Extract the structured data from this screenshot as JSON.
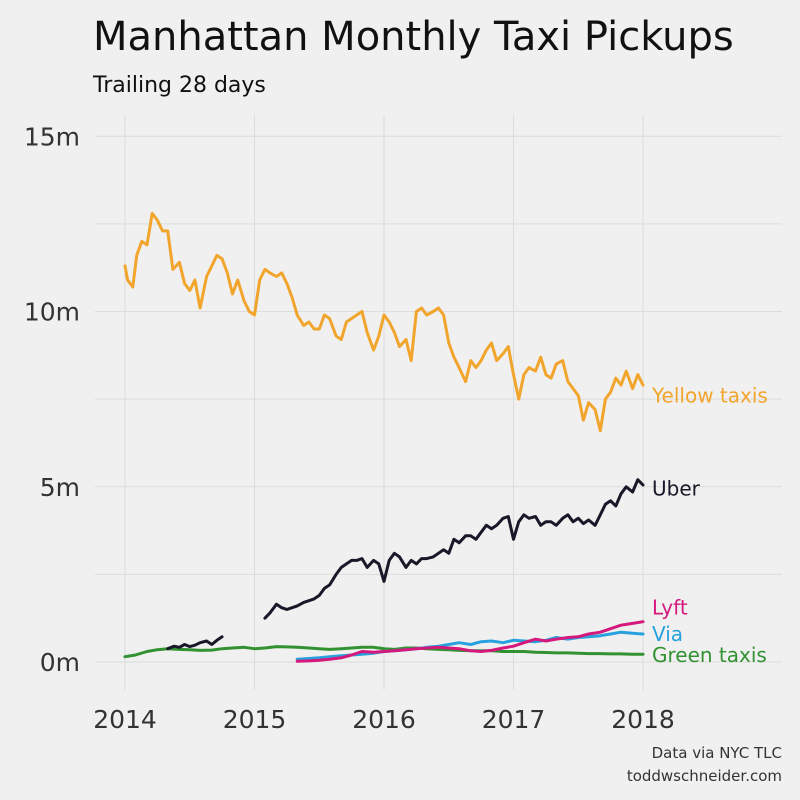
{
  "chart_data": {
    "type": "line",
    "title": "Manhattan Monthly Taxi Pickups",
    "subtitle": "Trailing 28 days",
    "xlabel": "",
    "ylabel": "",
    "xlim": [
      2014,
      2019
    ],
    "ylim": [
      -0.5,
      16
    ],
    "x_ticks": [
      {
        "value": 2014,
        "label": "2014"
      },
      {
        "value": 2015,
        "label": "2015"
      },
      {
        "value": 2016,
        "label": "2016"
      },
      {
        "value": 2017,
        "label": "2017"
      },
      {
        "value": 2018,
        "label": "2018"
      }
    ],
    "y_ticks": [
      {
        "value": 0,
        "label": "0m"
      },
      {
        "value": 5,
        "label": "5m"
      },
      {
        "value": 10,
        "label": "10m"
      },
      {
        "value": 15,
        "label": "15m"
      }
    ],
    "grid": true,
    "legend": "direct labels at right end of each line",
    "series": [
      {
        "name": "Yellow taxis",
        "color": "#f2a52c",
        "x": [
          2014.0,
          2014.02,
          2014.06,
          2014.09,
          2014.13,
          2014.17,
          2014.21,
          2014.25,
          2014.29,
          2014.33,
          2014.37,
          2014.42,
          2014.46,
          2014.5,
          2014.54,
          2014.58,
          2014.63,
          2014.67,
          2014.71,
          2014.75,
          2014.79,
          2014.83,
          2014.87,
          2014.92,
          2014.96,
          2015.0,
          2015.04,
          2015.08,
          2015.12,
          2015.17,
          2015.21,
          2015.25,
          2015.29,
          2015.33,
          2015.38,
          2015.42,
          2015.46,
          2015.5,
          2015.54,
          2015.58,
          2015.63,
          2015.67,
          2015.71,
          2015.75,
          2015.79,
          2015.83,
          2015.87,
          2015.92,
          2015.96,
          2016.0,
          2016.04,
          2016.08,
          2016.12,
          2016.17,
          2016.21,
          2016.25,
          2016.29,
          2016.33,
          2016.38,
          2016.42,
          2016.46,
          2016.5,
          2016.54,
          2016.58,
          2016.63,
          2016.67,
          2016.71,
          2016.75,
          2016.79,
          2016.83,
          2016.87,
          2016.92,
          2016.96,
          2017.0,
          2017.04,
          2017.08,
          2017.12,
          2017.17,
          2017.21,
          2017.25,
          2017.29,
          2017.33,
          2017.38,
          2017.42,
          2017.46,
          2017.5,
          2017.54,
          2017.58,
          2017.63,
          2017.67,
          2017.71,
          2017.75,
          2017.79,
          2017.83,
          2017.87,
          2017.92,
          2017.96,
          2018.0
        ],
        "values": [
          11.3,
          10.9,
          10.7,
          11.6,
          12.0,
          11.9,
          12.8,
          12.6,
          12.3,
          12.3,
          11.2,
          11.4,
          10.8,
          10.6,
          10.9,
          10.1,
          11.0,
          11.3,
          11.6,
          11.5,
          11.1,
          10.5,
          10.9,
          10.3,
          10.0,
          9.9,
          10.9,
          11.2,
          11.1,
          11.0,
          11.1,
          10.8,
          10.4,
          9.9,
          9.6,
          9.7,
          9.5,
          9.5,
          9.9,
          9.8,
          9.3,
          9.2,
          9.7,
          9.8,
          9.9,
          10.0,
          9.4,
          8.9,
          9.3,
          9.9,
          9.7,
          9.4,
          9.0,
          9.2,
          8.6,
          10.0,
          10.1,
          9.9,
          10.0,
          10.1,
          9.9,
          9.1,
          8.7,
          8.4,
          8.0,
          8.6,
          8.4,
          8.6,
          8.9,
          9.1,
          8.6,
          8.8,
          9.0,
          8.2,
          7.5,
          8.2,
          8.4,
          8.3,
          8.7,
          8.2,
          8.1,
          8.5,
          8.6,
          8.0,
          7.8,
          7.6,
          6.9,
          7.4,
          7.2,
          6.6,
          7.5,
          7.7,
          8.1,
          7.9,
          8.3,
          7.8,
          8.2,
          7.9
        ]
      },
      {
        "name": "Uber",
        "color": "#181828",
        "x": [
          2014.33,
          2014.38,
          2014.42,
          2014.46,
          2014.5,
          2014.54,
          2014.58,
          2014.63,
          2014.67,
          2014.71,
          2014.75
        ],
        "values": [
          0.38,
          0.45,
          0.42,
          0.5,
          0.44,
          0.48,
          0.55,
          0.6,
          0.5,
          0.62,
          0.72
        ],
        "segment2_x": [
          2015.08,
          2015.12,
          2015.17,
          2015.21,
          2015.25,
          2015.29,
          2015.33,
          2015.38,
          2015.42,
          2015.46,
          2015.5,
          2015.54,
          2015.58,
          2015.63,
          2015.67,
          2015.71,
          2015.75,
          2015.79,
          2015.83,
          2015.87,
          2015.92,
          2015.96,
          2016.0,
          2016.04,
          2016.08,
          2016.12,
          2016.17,
          2016.21,
          2016.25,
          2016.29,
          2016.33,
          2016.38,
          2016.42,
          2016.46,
          2016.5,
          2016.54,
          2016.58,
          2016.63,
          2016.67,
          2016.71,
          2016.75,
          2016.79,
          2016.83,
          2016.87,
          2016.92,
          2016.96,
          2017.0,
          2017.04,
          2017.08,
          2017.12,
          2017.17,
          2017.21,
          2017.25,
          2017.29,
          2017.33,
          2017.38,
          2017.42,
          2017.46,
          2017.5,
          2017.54,
          2017.58,
          2017.63,
          2017.67,
          2017.71,
          2017.75,
          2017.79,
          2017.83,
          2017.87,
          2017.92,
          2017.96,
          2018.0
        ],
        "segment2_values": [
          1.25,
          1.4,
          1.65,
          1.55,
          1.5,
          1.55,
          1.6,
          1.7,
          1.75,
          1.8,
          1.9,
          2.1,
          2.2,
          2.5,
          2.7,
          2.8,
          2.9,
          2.9,
          2.95,
          2.7,
          2.9,
          2.8,
          2.3,
          2.9,
          3.1,
          3.0,
          2.7,
          2.9,
          2.8,
          2.95,
          2.95,
          3.0,
          3.1,
          3.2,
          3.1,
          3.5,
          3.4,
          3.6,
          3.6,
          3.5,
          3.7,
          3.9,
          3.8,
          3.9,
          4.1,
          4.15,
          3.5,
          4.0,
          4.2,
          4.1,
          4.15,
          3.9,
          4.0,
          4.0,
          3.9,
          4.1,
          4.2,
          4.0,
          4.1,
          3.95,
          4.05,
          3.9,
          4.2,
          4.5,
          4.6,
          4.45,
          4.8,
          5.0,
          4.85,
          5.2,
          5.05
        ]
      },
      {
        "name": "Lyft",
        "color": "#d4187c",
        "x": [
          2015.33,
          2015.42,
          2015.5,
          2015.58,
          2015.67,
          2015.75,
          2015.83,
          2015.92,
          2016.0,
          2016.08,
          2016.17,
          2016.25,
          2016.33,
          2016.42,
          2016.5,
          2016.58,
          2016.67,
          2016.75,
          2016.83,
          2016.92,
          2017.0,
          2017.08,
          2017.17,
          2017.25,
          2017.33,
          2017.42,
          2017.5,
          2017.58,
          2017.67,
          2017.75,
          2017.83,
          2017.92,
          2018.0
        ],
        "values": [
          0.02,
          0.03,
          0.05,
          0.08,
          0.12,
          0.2,
          0.3,
          0.28,
          0.3,
          0.32,
          0.35,
          0.38,
          0.4,
          0.42,
          0.4,
          0.38,
          0.32,
          0.3,
          0.33,
          0.4,
          0.45,
          0.55,
          0.65,
          0.6,
          0.65,
          0.7,
          0.72,
          0.8,
          0.85,
          0.95,
          1.05,
          1.1,
          1.15
        ]
      },
      {
        "name": "Via",
        "color": "#27a2de",
        "x": [
          2015.33,
          2015.42,
          2015.5,
          2015.58,
          2015.67,
          2015.75,
          2015.83,
          2015.92,
          2016.0,
          2016.08,
          2016.17,
          2016.25,
          2016.33,
          2016.42,
          2016.5,
          2016.58,
          2016.67,
          2016.75,
          2016.83,
          2016.92,
          2017.0,
          2017.08,
          2017.17,
          2017.25,
          2017.33,
          2017.42,
          2017.5,
          2017.58,
          2017.67,
          2017.75,
          2017.83,
          2017.92,
          2018.0
        ],
        "values": [
          0.08,
          0.1,
          0.12,
          0.15,
          0.18,
          0.2,
          0.22,
          0.25,
          0.3,
          0.32,
          0.35,
          0.38,
          0.42,
          0.45,
          0.5,
          0.55,
          0.5,
          0.58,
          0.6,
          0.55,
          0.62,
          0.6,
          0.58,
          0.62,
          0.7,
          0.65,
          0.7,
          0.72,
          0.75,
          0.8,
          0.85,
          0.82,
          0.8
        ]
      },
      {
        "name": "Green taxis",
        "color": "#329232",
        "x": [
          2014.0,
          2014.08,
          2014.17,
          2014.25,
          2014.33,
          2014.42,
          2014.5,
          2014.58,
          2014.67,
          2014.75,
          2014.83,
          2014.92,
          2015.0,
          2015.08,
          2015.17,
          2015.25,
          2015.33,
          2015.42,
          2015.5,
          2015.58,
          2015.67,
          2015.75,
          2015.83,
          2015.92,
          2016.0,
          2016.08,
          2016.17,
          2016.25,
          2016.33,
          2016.42,
          2016.5,
          2016.58,
          2016.67,
          2016.75,
          2016.83,
          2016.92,
          2017.0,
          2017.08,
          2017.17,
          2017.25,
          2017.33,
          2017.42,
          2017.5,
          2017.58,
          2017.67,
          2017.75,
          2017.83,
          2017.92,
          2018.0
        ],
        "values": [
          0.15,
          0.2,
          0.3,
          0.35,
          0.38,
          0.36,
          0.35,
          0.33,
          0.34,
          0.38,
          0.4,
          0.42,
          0.38,
          0.4,
          0.44,
          0.43,
          0.42,
          0.4,
          0.38,
          0.36,
          0.38,
          0.4,
          0.42,
          0.42,
          0.38,
          0.36,
          0.4,
          0.4,
          0.38,
          0.36,
          0.35,
          0.33,
          0.32,
          0.32,
          0.32,
          0.3,
          0.3,
          0.3,
          0.28,
          0.27,
          0.26,
          0.26,
          0.25,
          0.24,
          0.24,
          0.23,
          0.23,
          0.22,
          0.22
        ]
      }
    ],
    "annotations": [
      "Data via NYC TLC",
      "toddwschneider.com"
    ]
  },
  "labels": {
    "yellow": {
      "text": "Yellow taxis",
      "color": "#f2a52c",
      "value": 7.6
    },
    "uber": {
      "text": "Uber",
      "color": "#181828",
      "value": 4.95
    },
    "lyft": {
      "text": "Lyft",
      "color": "#d4187c",
      "value": 1.55
    },
    "via": {
      "text": "Via",
      "color": "#27a2de",
      "value": 0.8
    },
    "green": {
      "text": "Green taxis",
      "color": "#329232",
      "value": 0.2
    }
  },
  "credits": {
    "line1": "Data via NYC TLC",
    "line2": "toddwschneider.com"
  }
}
